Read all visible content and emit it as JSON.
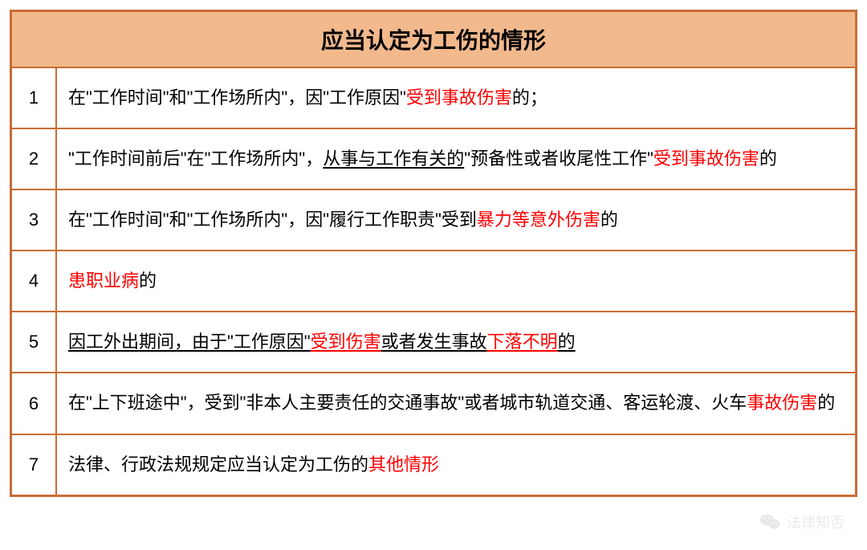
{
  "table": {
    "title": "应当认定为工伤的情形",
    "title_bg_color": "#f2b98d",
    "border_color": "#c96d36",
    "text_color": "#000000",
    "highlight_color": "#ff0000",
    "title_fontsize": 28,
    "cell_fontsize": 22,
    "num_col_width": 56,
    "rows": [
      {
        "num": "1",
        "segments": [
          {
            "text": "在\"工作时间\"和\"工作场所内\"，因\"工作原因\"",
            "red": false,
            "underline": false
          },
          {
            "text": "受到事故伤害",
            "red": true,
            "underline": false
          },
          {
            "text": "的；",
            "red": false,
            "underline": false
          }
        ]
      },
      {
        "num": "2",
        "segments": [
          {
            "text": "\"工作时间前后\"在\"工作场所内\"，",
            "red": false,
            "underline": false
          },
          {
            "text": "从事与工作有关的",
            "red": false,
            "underline": true
          },
          {
            "text": "\"预备性或者收尾性工作\"",
            "red": false,
            "underline": false
          },
          {
            "text": "受到事故伤害",
            "red": true,
            "underline": false
          },
          {
            "text": "的",
            "red": false,
            "underline": false
          }
        ]
      },
      {
        "num": "3",
        "segments": [
          {
            "text": "在\"工作时间\"和\"工作场所内\"，因\"履行工作职责\"受到",
            "red": false,
            "underline": false
          },
          {
            "text": "暴力等意外伤害",
            "red": true,
            "underline": false
          },
          {
            "text": "的",
            "red": false,
            "underline": false
          }
        ]
      },
      {
        "num": "4",
        "segments": [
          {
            "text": "患职业病",
            "red": true,
            "underline": false
          },
          {
            "text": "的",
            "red": false,
            "underline": false
          }
        ]
      },
      {
        "num": "5",
        "segments": [
          {
            "text": "因工外出期间，由于\"工作原因\"",
            "red": false,
            "underline": true
          },
          {
            "text": "受到伤害",
            "red": true,
            "underline": true
          },
          {
            "text": "或者发生事故",
            "red": false,
            "underline": true
          },
          {
            "text": "下落不明",
            "red": true,
            "underline": true
          },
          {
            "text": "的",
            "red": false,
            "underline": true
          }
        ]
      },
      {
        "num": "6",
        "segments": [
          {
            "text": "在\"上下班途中\"，受到\"非本人主要责任的交通事故\"或者城市轨道交通、客运轮渡、火车",
            "red": false,
            "underline": false
          },
          {
            "text": "事故伤害",
            "red": true,
            "underline": false
          },
          {
            "text": "的",
            "red": false,
            "underline": false
          }
        ]
      },
      {
        "num": "7",
        "segments": [
          {
            "text": "法律、行政法规规定应当认定为工伤的",
            "red": false,
            "underline": false
          },
          {
            "text": "其他情形",
            "red": true,
            "underline": false
          }
        ]
      }
    ]
  },
  "watermark": {
    "text": "法律知否",
    "icon": "wechat-icon",
    "text_color": "#d4d4d4",
    "opacity": 0.5
  }
}
